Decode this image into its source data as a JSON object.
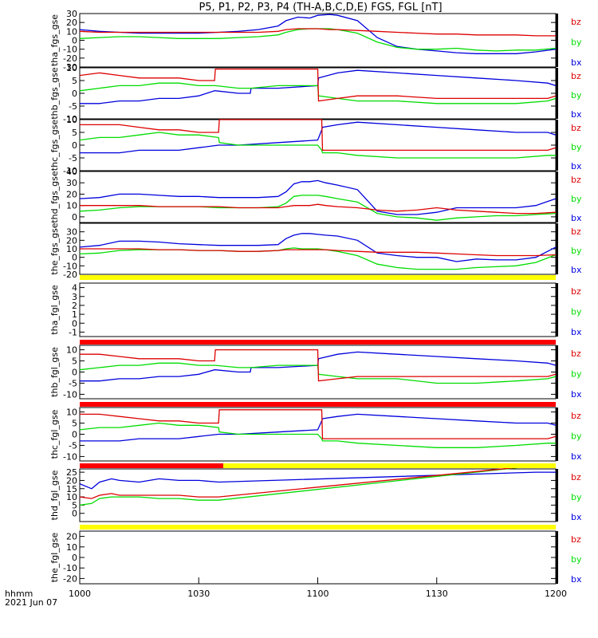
{
  "title": "P5, P1, P2, P3, P4 (TH-A,B,C,D,E) FGS, FGL [nT]",
  "time_axis": {
    "label": "hhmm",
    "date": "2021 Jun 07",
    "tick_labels": [
      "1000",
      "1030",
      "1100",
      "1130",
      "1200"
    ],
    "tick_minutes": [
      0,
      30,
      60,
      90,
      120
    ]
  },
  "colors": {
    "bx": "#0000dd",
    "by": "#00dd00",
    "bz": "#dd0000",
    "yellow": "#ffff00",
    "red": "#ff0000"
  },
  "legend": [
    "bz",
    "by",
    "bx"
  ],
  "chart_data": [
    {
      "type": "line",
      "ylabel": "tha_fgs_gse",
      "ylim": [
        -30,
        30
      ],
      "ytick_labels": [
        "-30",
        "-20",
        "-10",
        "0",
        "10",
        "20",
        "30"
      ],
      "x": [
        0,
        5,
        10,
        15,
        20,
        25,
        30,
        35,
        40,
        45,
        50,
        52,
        55,
        58,
        60,
        63,
        65,
        70,
        75,
        80,
        85,
        90,
        95,
        100,
        105,
        110,
        115,
        120
      ],
      "series": [
        {
          "name": "bx",
          "values": [
            12,
            10,
            9,
            8,
            8,
            8,
            8,
            9,
            10,
            12,
            16,
            22,
            26,
            25,
            28,
            29,
            28,
            22,
            3,
            -7,
            -10,
            -12,
            -14,
            -15,
            -15,
            -15,
            -13,
            -10
          ]
        },
        {
          "name": "by",
          "values": [
            2,
            3,
            4,
            4,
            3,
            2,
            2,
            2,
            3,
            4,
            6,
            9,
            12,
            13,
            13,
            13,
            12,
            8,
            -2,
            -8,
            -10,
            -10,
            -9,
            -11,
            -12,
            -11,
            -11,
            -9
          ]
        },
        {
          "name": "bz",
          "values": [
            10,
            9,
            9,
            9,
            9,
            9,
            9,
            9,
            9,
            9,
            10,
            12,
            13,
            13,
            13,
            12,
            12,
            11,
            10,
            9,
            8,
            7,
            7,
            6,
            6,
            6,
            5,
            5
          ]
        }
      ]
    },
    {
      "type": "line",
      "ylabel": "thb_fgs_gse",
      "ylim": [
        -10,
        10
      ],
      "ytick_labels": [
        "-10",
        "-5",
        "0",
        "5",
        "10"
      ],
      "x": [
        0,
        5,
        10,
        15,
        20,
        25,
        30,
        34,
        34.2,
        40,
        43,
        43.2,
        50,
        60,
        60.2,
        65,
        70,
        80,
        90,
        100,
        110,
        118,
        120
      ],
      "series": [
        {
          "name": "bx",
          "values": [
            -4,
            -4,
            -3,
            -3,
            -2,
            -2,
            -1,
            1,
            1,
            0,
            0,
            2,
            2,
            3,
            6,
            8,
            9,
            8,
            7,
            6,
            5,
            4,
            3
          ]
        },
        {
          "name": "by",
          "values": [
            1,
            2,
            3,
            3,
            4,
            4,
            3,
            3,
            3,
            2,
            2,
            2,
            3,
            3,
            -1,
            -2,
            -3,
            -3,
            -4,
            -4,
            -4,
            -3,
            -2
          ]
        },
        {
          "name": "bz",
          "values": [
            7,
            8,
            7,
            6,
            6,
            6,
            5,
            5,
            9.5,
            9.5,
            9.5,
            9.5,
            9.5,
            9.5,
            -3,
            -2,
            -1,
            -1,
            -2,
            -2,
            -2,
            -2,
            -1
          ]
        }
      ]
    },
    {
      "type": "line",
      "ylabel": "thc_fgs_gse",
      "ylim": [
        -10,
        10
      ],
      "ytick_labels": [
        "-10",
        "-5",
        "0",
        "5",
        "10"
      ],
      "x": [
        0,
        5,
        10,
        15,
        20,
        25,
        30,
        35,
        35.2,
        40,
        50,
        60,
        61,
        61.2,
        65,
        70,
        80,
        90,
        100,
        110,
        118,
        120
      ],
      "series": [
        {
          "name": "bx",
          "values": [
            -3,
            -3,
            -3,
            -2,
            -2,
            -2,
            -1,
            0,
            0,
            0,
            1,
            2,
            6,
            7,
            8,
            9,
            8,
            7,
            6,
            5,
            5,
            4
          ]
        },
        {
          "name": "by",
          "values": [
            2,
            3,
            3,
            4,
            5,
            4,
            4,
            3,
            1,
            0,
            0,
            0,
            -2,
            -3,
            -3,
            -4,
            -5,
            -5,
            -5,
            -5,
            -4,
            -4
          ]
        },
        {
          "name": "bz",
          "values": [
            8,
            8,
            8,
            7,
            6,
            6,
            5,
            5,
            10,
            10,
            10,
            10,
            10,
            -2,
            -2,
            -2,
            -2,
            -2,
            -2,
            -2,
            -2,
            -1
          ]
        }
      ]
    },
    {
      "type": "line",
      "ylabel": "thd_fgs_gse",
      "ylim": [
        -5,
        40
      ],
      "ytick_labels": [
        "0",
        "10",
        "20",
        "30",
        "40"
      ],
      "x": [
        0,
        5,
        10,
        15,
        20,
        25,
        30,
        35,
        40,
        45,
        50,
        52,
        54,
        56,
        58,
        60,
        62,
        65,
        70,
        75,
        80,
        85,
        90,
        95,
        100,
        105,
        110,
        115,
        120
      ],
      "series": [
        {
          "name": "bx",
          "values": [
            16,
            17,
            20,
            20,
            19,
            18,
            18,
            17,
            17,
            17,
            18,
            22,
            29,
            31,
            31,
            32,
            30,
            28,
            24,
            5,
            2,
            2,
            4,
            8,
            8,
            8,
            8,
            10,
            16
          ]
        },
        {
          "name": "by",
          "values": [
            5,
            6,
            8,
            9,
            9,
            9,
            9,
            8,
            8,
            8,
            9,
            12,
            18,
            19,
            19,
            19,
            18,
            16,
            13,
            3,
            0,
            -1,
            -3,
            -1,
            0,
            1,
            1,
            2,
            3
          ]
        },
        {
          "name": "bz",
          "values": [
            10,
            10,
            10,
            10,
            9,
            9,
            9,
            9,
            8,
            8,
            8,
            9,
            10,
            10,
            10,
            11,
            10,
            9,
            8,
            6,
            5,
            6,
            8,
            6,
            5,
            4,
            3,
            3,
            4
          ]
        }
      ]
    },
    {
      "type": "line",
      "ylabel": "the_fgs_gse",
      "ylim": [
        -20,
        40
      ],
      "ytick_labels": [
        "-20",
        "-10",
        "0",
        "10",
        "20",
        "30"
      ],
      "x": [
        0,
        5,
        10,
        15,
        20,
        25,
        30,
        35,
        40,
        45,
        50,
        52,
        54,
        56,
        58,
        60,
        62,
        65,
        70,
        75,
        80,
        85,
        90,
        95,
        100,
        105,
        110,
        115,
        120
      ],
      "series": [
        {
          "name": "bx",
          "values": [
            12,
            14,
            19,
            19,
            18,
            16,
            15,
            14,
            14,
            14,
            15,
            22,
            26,
            28,
            28,
            27,
            26,
            25,
            20,
            5,
            2,
            0,
            0,
            -5,
            -2,
            -3,
            -3,
            0,
            12
          ]
        },
        {
          "name": "by",
          "values": [
            4,
            5,
            8,
            9,
            9,
            9,
            8,
            8,
            7,
            7,
            8,
            10,
            11,
            10,
            10,
            10,
            9,
            7,
            2,
            -8,
            -12,
            -14,
            -14,
            -14,
            -12,
            -11,
            -10,
            -6,
            3
          ]
        },
        {
          "name": "bz",
          "values": [
            10,
            10,
            10,
            10,
            9,
            9,
            8,
            8,
            7,
            7,
            8,
            9,
            9,
            9,
            9,
            9,
            9,
            8,
            7,
            6,
            6,
            6,
            5,
            4,
            3,
            2,
            2,
            2,
            3
          ]
        }
      ]
    },
    {
      "type": "line",
      "ylabel": "tha_fgl_gse",
      "ylim": [
        -1.5,
        4.5
      ],
      "ytick_labels": [
        "-1",
        "0",
        "1",
        "2",
        "3",
        "4"
      ],
      "x": [],
      "series": []
    },
    {
      "type": "line",
      "ylabel": "thb_fgl_gse",
      "ylim": [
        -12,
        12
      ],
      "ytick_labels": [
        "-10",
        "-5",
        "0",
        "5",
        "10"
      ],
      "x": [
        0,
        5,
        10,
        15,
        20,
        25,
        30,
        34,
        34.2,
        40,
        43,
        43.2,
        50,
        60,
        60.2,
        65,
        70,
        80,
        90,
        100,
        110,
        118,
        120
      ],
      "series": [
        {
          "name": "bx",
          "values": [
            -4,
            -4,
            -3,
            -3,
            -2,
            -2,
            -1,
            1,
            1,
            0,
            0,
            2,
            2,
            3,
            6,
            8,
            9,
            8,
            7,
            6,
            5,
            4,
            3
          ]
        },
        {
          "name": "by",
          "values": [
            1,
            2,
            3,
            3,
            4,
            4,
            3,
            3,
            3,
            2,
            2,
            2,
            3,
            3,
            -1,
            -2,
            -3,
            -3,
            -5,
            -5,
            -4,
            -3,
            -2
          ]
        },
        {
          "name": "bz",
          "values": [
            8,
            8,
            7,
            6,
            6,
            6,
            5,
            5,
            10,
            10,
            10,
            10,
            10,
            10,
            -4,
            -3,
            -2,
            -2,
            -2,
            -2,
            -2,
            -2,
            -1
          ]
        }
      ]
    },
    {
      "type": "line",
      "ylabel": "thc_fgl_gse",
      "ylim": [
        -12,
        12
      ],
      "ytick_labels": [
        "-10",
        "-5",
        "0",
        "5",
        "10"
      ],
      "x": [
        0,
        5,
        10,
        15,
        20,
        25,
        30,
        35,
        35.2,
        40,
        50,
        60,
        61,
        61.2,
        65,
        70,
        80,
        90,
        100,
        110,
        118,
        120
      ],
      "series": [
        {
          "name": "bx",
          "values": [
            -3,
            -3,
            -3,
            -2,
            -2,
            -2,
            -1,
            0,
            0,
            0,
            1,
            2,
            6,
            7,
            8,
            9,
            8,
            7,
            6,
            5,
            5,
            4
          ]
        },
        {
          "name": "by",
          "values": [
            2,
            3,
            3,
            4,
            5,
            4,
            4,
            3,
            1,
            0,
            0,
            0,
            -2,
            -3,
            -3,
            -4,
            -5,
            -6,
            -6,
            -5,
            -4,
            -4
          ]
        },
        {
          "name": "bz",
          "values": [
            9,
            9,
            8,
            7,
            6,
            6,
            5,
            5,
            11,
            11,
            11,
            11,
            11,
            -2,
            -2,
            -2,
            -2,
            -2,
            -2,
            -2,
            -2,
            -1
          ]
        }
      ]
    },
    {
      "type": "line",
      "ylabel": "thd_fgl_gse",
      "ylim": [
        -5,
        27
      ],
      "ytick_labels": [
        "0",
        "5",
        "10",
        "15",
        "20",
        "25"
      ],
      "x": [
        0,
        3,
        5,
        8,
        10,
        15,
        20,
        25,
        30,
        35,
        115,
        120
      ],
      "series": [
        {
          "name": "bx",
          "values": [
            18,
            15,
            19,
            21,
            20,
            19,
            21,
            20,
            20,
            19,
            25,
            25
          ]
        },
        {
          "name": "by",
          "values": [
            5,
            6,
            9,
            10,
            10,
            10,
            9,
            9,
            8,
            8,
            29,
            29
          ]
        },
        {
          "name": "bz",
          "values": [
            10,
            9,
            11,
            12,
            11,
            11,
            11,
            11,
            10,
            10,
            29,
            29
          ]
        }
      ]
    },
    {
      "type": "line",
      "ylabel": "the_fgl_gse",
      "ylim": [
        -25,
        25
      ],
      "ytick_labels": [
        "-20",
        "-10",
        "0",
        "10",
        "20"
      ],
      "x": [],
      "series": []
    }
  ]
}
